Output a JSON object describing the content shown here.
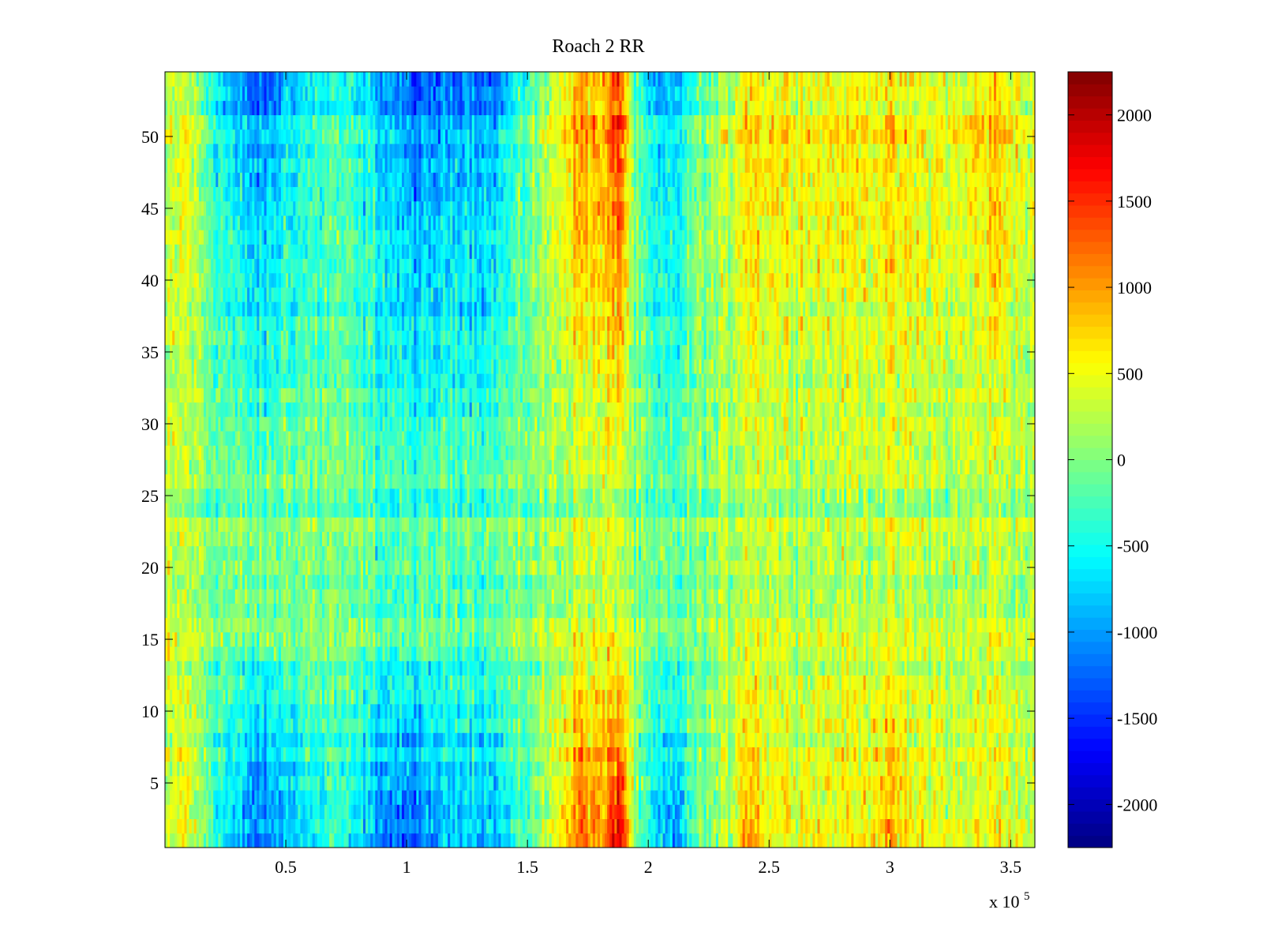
{
  "chart_data": {
    "type": "heatmap",
    "title": "Roach 2 RR",
    "xlabel": "",
    "ylabel": "",
    "x_multiplier_label": "x 10",
    "x_multiplier_exponent": "5",
    "xlim": [
      0,
      3.6
    ],
    "ylim": [
      0.5,
      54.5
    ],
    "x_ticks": [
      {
        "value": 0.5,
        "label": "0.5"
      },
      {
        "value": 1,
        "label": "1"
      },
      {
        "value": 1.5,
        "label": "1.5"
      },
      {
        "value": 2,
        "label": "2"
      },
      {
        "value": 2.5,
        "label": "2.5"
      },
      {
        "value": 3,
        "label": "3"
      },
      {
        "value": 3.5,
        "label": "3.5"
      }
    ],
    "y_ticks": [
      {
        "value": 5,
        "label": "5"
      },
      {
        "value": 10,
        "label": "10"
      },
      {
        "value": 15,
        "label": "15"
      },
      {
        "value": 20,
        "label": "20"
      },
      {
        "value": 25,
        "label": "25"
      },
      {
        "value": 30,
        "label": "30"
      },
      {
        "value": 35,
        "label": "35"
      },
      {
        "value": 40,
        "label": "40"
      },
      {
        "value": 45,
        "label": "45"
      },
      {
        "value": 50,
        "label": "50"
      }
    ],
    "rows": 54,
    "colorbar": {
      "colormap": "jet",
      "clim": [
        -2250,
        2250
      ],
      "ticks": [
        {
          "value": 2000,
          "label": "2000"
        },
        {
          "value": 1500,
          "label": "1500"
        },
        {
          "value": 1000,
          "label": "1000"
        },
        {
          "value": 500,
          "label": "500"
        },
        {
          "value": 0,
          "label": "0"
        },
        {
          "value": -500,
          "label": "-500"
        },
        {
          "value": -1000,
          "label": "-1000"
        },
        {
          "value": -1500,
          "label": "-1500"
        },
        {
          "value": -2000,
          "label": "-2000"
        }
      ]
    },
    "column_profile": {
      "description_units": "x in units of 10^5, value = approximate mean intensity",
      "x": [
        0,
        0.08,
        0.15,
        0.25,
        0.4,
        0.5,
        0.7,
        0.9,
        1.0,
        1.08,
        1.2,
        1.35,
        1.5,
        1.62,
        1.72,
        1.82,
        1.88,
        1.95,
        2.05,
        2.12,
        2.2,
        2.35,
        2.4,
        2.5,
        2.7,
        2.9,
        3.0,
        3.1,
        3.3,
        3.45,
        3.6
      ],
      "top_rows": [
        100,
        500,
        0,
        -700,
        -1200,
        -700,
        -300,
        -800,
        -1100,
        -1300,
        -900,
        -1000,
        -200,
        500,
        1100,
        900,
        1700,
        -300,
        -900,
        -700,
        -100,
        300,
        900,
        700,
        600,
        700,
        700,
        600,
        500,
        900,
        300
      ],
      "middle_rows": [
        200,
        300,
        100,
        0,
        -100,
        0,
        0,
        -200,
        -250,
        -200,
        -100,
        -150,
        50,
        150,
        300,
        250,
        400,
        0,
        -200,
        -100,
        0,
        150,
        350,
        300,
        250,
        300,
        300,
        250,
        200,
        300,
        150
      ],
      "bottom_rows": [
        100,
        600,
        0,
        -700,
        -1300,
        -900,
        -400,
        -1100,
        -1300,
        -1200,
        -700,
        -900,
        -300,
        500,
        1300,
        1000,
        1900,
        -200,
        -900,
        -1000,
        -200,
        300,
        1100,
        600,
        500,
        600,
        900,
        500,
        400,
        600,
        200
      ]
    }
  }
}
